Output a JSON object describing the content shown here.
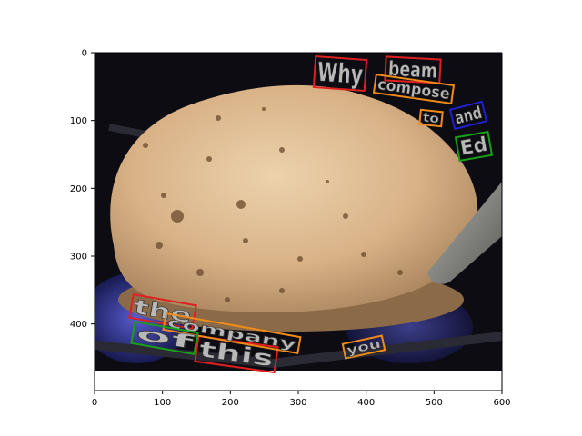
{
  "figure": {
    "x_ticks": [
      "0",
      "100",
      "200",
      "300",
      "400",
      "500",
      "600"
    ],
    "y_ticks": [
      "0",
      "100",
      "200",
      "300",
      "400"
    ],
    "x_range": [
      0,
      600
    ],
    "y_range": [
      0,
      470
    ]
  },
  "photo": {
    "subject": "puffed roti on gas stove burner",
    "colors": {
      "background": "#0d0c12",
      "roti": "#d8b48a",
      "roti_shadow": "#9c7a55",
      "spots": "#6b4a2a",
      "flame": "#3a3fd0",
      "spatula": "#8a8a86"
    }
  },
  "words": [
    {
      "text": "Why",
      "color": "#e02020"
    },
    {
      "text": "beam",
      "color": "#e02020"
    },
    {
      "text": "compose",
      "color": "#f08a18"
    },
    {
      "text": "to",
      "color": "#f08a18"
    },
    {
      "text": "and",
      "color": "#2020d0"
    },
    {
      "text": "Ed",
      "color": "#18a018"
    },
    {
      "text": "the",
      "color": "#e02020"
    },
    {
      "text": "this",
      "color": "#e02020"
    },
    {
      "text": "company",
      "color": "#f08a18"
    },
    {
      "text": "you",
      "color": "#f08a18"
    },
    {
      "text": "of",
      "color": "#18a018"
    }
  ]
}
